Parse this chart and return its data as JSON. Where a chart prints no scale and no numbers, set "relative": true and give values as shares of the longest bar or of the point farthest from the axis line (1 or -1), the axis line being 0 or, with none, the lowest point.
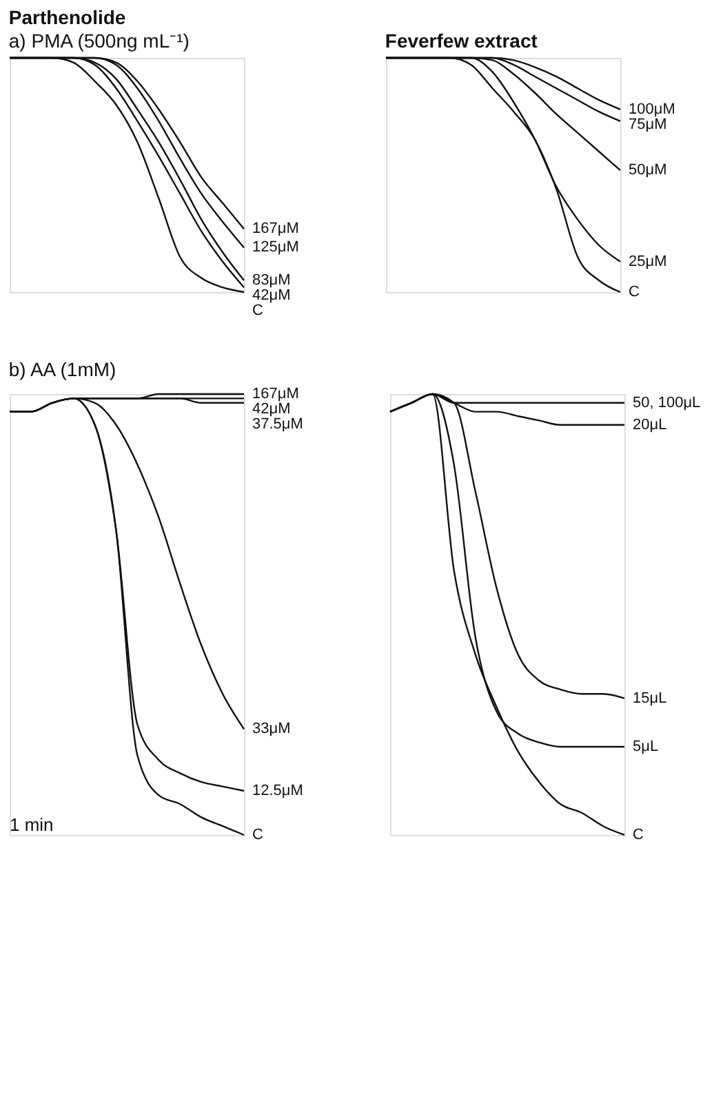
{
  "chart_data": [
    {
      "type": "line",
      "title": "Parthenolide",
      "subtitle": "a) PMA (500ng mL⁻¹)",
      "relative": true,
      "line_style": "solid",
      "categories": [
        null,
        null,
        null,
        null,
        null,
        null,
        null,
        null,
        null,
        null,
        null,
        null
      ],
      "series": [
        {
          "name": "167μM",
          "color": "#111111",
          "values": [
            1,
            1,
            1,
            1,
            1,
            0.98,
            0.9,
            0.78,
            0.64,
            0.49,
            0.38,
            0.27
          ]
        },
        {
          "name": "125μM",
          "color": "#111111",
          "values": [
            1,
            1,
            1,
            1,
            1,
            0.97,
            0.87,
            0.73,
            0.57,
            0.42,
            0.3,
            0.19
          ]
        },
        {
          "name": "83μM",
          "color": "#111111",
          "values": [
            1,
            1,
            1,
            1,
            0.98,
            0.91,
            0.78,
            0.64,
            0.48,
            0.31,
            0.17,
            0.05
          ]
        },
        {
          "name": "42μM",
          "color": "#111111",
          "values": [
            1,
            1,
            1,
            1,
            0.97,
            0.87,
            0.73,
            0.58,
            0.42,
            0.26,
            0.13,
            0.02
          ]
        },
        {
          "name": "C",
          "color": "#111111",
          "values": [
            1,
            1,
            1,
            0.98,
            0.9,
            0.8,
            0.64,
            0.4,
            0.15,
            0.06,
            0.02,
            0
          ]
        }
      ]
    },
    {
      "type": "line",
      "title": "Feverfew extract",
      "relative": true,
      "line_style": "solid",
      "categories": [
        null,
        null,
        null,
        null,
        null,
        null,
        null,
        null,
        null,
        null,
        null,
        null
      ],
      "series": [
        {
          "name": "100μM",
          "color": "#111111",
          "values": [
            1,
            1,
            1,
            1,
            1,
            1,
            0.99,
            0.96,
            0.92,
            0.87,
            0.82,
            0.78
          ]
        },
        {
          "name": "75μM",
          "color": "#111111",
          "values": [
            1,
            1,
            1,
            1,
            1,
            1,
            0.97,
            0.92,
            0.87,
            0.82,
            0.77,
            0.73
          ]
        },
        {
          "name": "50μM",
          "color": "#111111",
          "values": [
            1,
            1,
            1,
            1,
            1,
            0.99,
            0.93,
            0.85,
            0.76,
            0.68,
            0.6,
            0.52
          ]
        },
        {
          "name": "25μM",
          "color": "#111111",
          "values": [
            1,
            1,
            1,
            1,
            1,
            0.94,
            0.81,
            0.65,
            0.45,
            0.31,
            0.2,
            0.13
          ]
        },
        {
          "name": "C",
          "color": "#111111",
          "values": [
            1,
            1,
            1,
            1,
            0.97,
            0.87,
            0.77,
            0.65,
            0.44,
            0.15,
            0.05,
            0
          ]
        }
      ]
    },
    {
      "type": "line",
      "title": "b) AA (1mM)",
      "relative": true,
      "line_style": "solid",
      "categories": [
        null,
        null,
        null,
        null,
        null,
        null,
        null,
        null,
        null,
        null,
        null,
        null
      ],
      "annotations": [
        "1 min"
      ],
      "series": [
        {
          "name": "167μM",
          "color": "#111111",
          "values": [
            0.96,
            0.96,
            0.98,
            0.99,
            0.99,
            0.99,
            0.99,
            1,
            1,
            1,
            1,
            1
          ]
        },
        {
          "name": "42μM",
          "color": "#111111",
          "values": [
            0.96,
            0.96,
            0.98,
            0.99,
            0.99,
            0.99,
            0.99,
            0.99,
            0.99,
            0.99,
            0.99,
            0.99
          ]
        },
        {
          "name": "37.5μM",
          "color": "#111111",
          "values": [
            0.96,
            0.96,
            0.98,
            0.99,
            0.99,
            0.99,
            0.99,
            0.99,
            0.99,
            0.98,
            0.98,
            0.98
          ]
        },
        {
          "name": "33μM",
          "color": "#111111",
          "values": [
            0.96,
            0.96,
            0.98,
            0.99,
            0.98,
            0.93,
            0.84,
            0.72,
            0.57,
            0.43,
            0.32,
            0.24
          ]
        },
        {
          "name": "12.5μM",
          "color": "#111111",
          "values": [
            0.96,
            0.96,
            0.98,
            0.99,
            0.93,
            0.69,
            0.25,
            0.17,
            0.14,
            0.12,
            0.11,
            0.1
          ]
        },
        {
          "name": "C",
          "color": "#111111",
          "values": [
            0.96,
            0.96,
            0.98,
            0.99,
            0.93,
            0.69,
            0.18,
            0.09,
            0.07,
            0.04,
            0.02,
            0
          ]
        }
      ]
    },
    {
      "type": "line",
      "relative": true,
      "line_style": "solid",
      "categories": [
        null,
        null,
        null,
        null,
        null,
        null,
        null,
        null,
        null,
        null,
        null,
        null
      ],
      "series": [
        {
          "name": "50, 100μL",
          "color": "#111111",
          "values": [
            0.96,
            0.98,
            1.0,
            0.98,
            0.98,
            0.98,
            0.98,
            0.98,
            0.98,
            0.98,
            0.98,
            0.98
          ]
        },
        {
          "name": "20μL",
          "color": "#111111",
          "values": [
            0.96,
            0.98,
            1.0,
            0.98,
            0.96,
            0.96,
            0.95,
            0.94,
            0.93,
            0.93,
            0.93,
            0.93
          ]
        },
        {
          "name": "15μL",
          "color": "#111111",
          "values": [
            0.96,
            0.98,
            1.0,
            0.98,
            0.78,
            0.56,
            0.41,
            0.35,
            0.33,
            0.32,
            0.32,
            0.31
          ]
        },
        {
          "name": "5μL",
          "color": "#111111",
          "values": [
            0.96,
            0.98,
            1.0,
            0.84,
            0.45,
            0.28,
            0.23,
            0.21,
            0.2,
            0.2,
            0.2,
            0.2
          ]
        },
        {
          "name": "C",
          "color": "#111111",
          "values": [
            0.96,
            0.98,
            1.0,
            0.6,
            0.41,
            0.29,
            0.19,
            0.12,
            0.07,
            0.05,
            0.02,
            0
          ]
        }
      ]
    }
  ]
}
